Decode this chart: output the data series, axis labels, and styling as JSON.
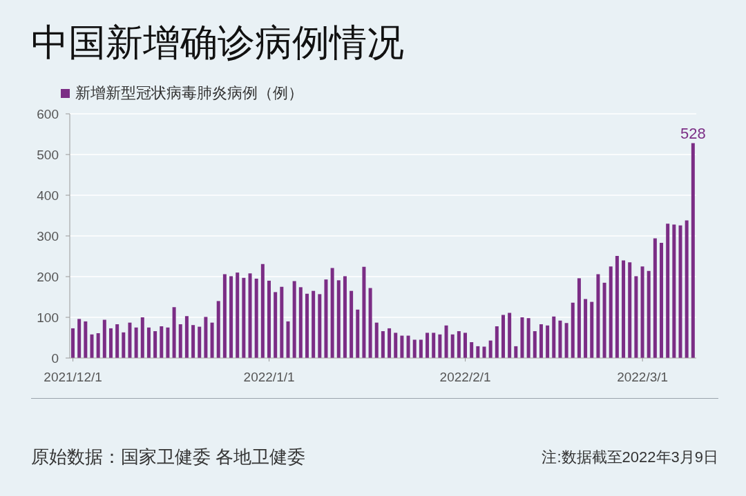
{
  "chart_data": {
    "type": "bar",
    "title": "中国新增确诊病例情况",
    "categories": [
      "2021/12/1",
      null,
      null,
      null,
      null,
      null,
      null,
      null,
      null,
      null,
      null,
      null,
      null,
      null,
      null,
      null,
      null,
      null,
      null,
      null,
      null,
      null,
      null,
      null,
      null,
      null,
      null,
      null,
      null,
      null,
      null,
      "2022/1/1",
      null,
      null,
      null,
      null,
      null,
      null,
      null,
      null,
      null,
      null,
      null,
      null,
      null,
      null,
      null,
      null,
      null,
      null,
      null,
      null,
      null,
      null,
      null,
      null,
      null,
      null,
      null,
      null,
      null,
      null,
      "2022/2/1",
      null,
      null,
      null,
      null,
      null,
      null,
      null,
      null,
      null,
      null,
      null,
      null,
      null,
      null,
      null,
      null,
      null,
      null,
      null,
      null,
      null,
      null,
      null,
      null,
      null,
      null,
      null,
      "2022/3/1",
      null,
      null,
      null,
      null,
      null,
      null,
      null,
      null
    ],
    "series": [
      {
        "name": "新增新型冠状病毒肺炎病例（例）",
        "color": "#7b2d85",
        "values": [
          73,
          96,
          90,
          58,
          61,
          94,
          73,
          83,
          63,
          87,
          75,
          100,
          75,
          66,
          78,
          75,
          125,
          83,
          103,
          81,
          77,
          101,
          87,
          140,
          206,
          201,
          210,
          197,
          208,
          195,
          231,
          190,
          162,
          175,
          90,
          189,
          174,
          158,
          165,
          157,
          193,
          221,
          191,
          201,
          165,
          119,
          224,
          172,
          87,
          66,
          73,
          62,
          55,
          55,
          45,
          45,
          62,
          62,
          58,
          80,
          58,
          66,
          62,
          39,
          29,
          28,
          43,
          78,
          106,
          111,
          29,
          100,
          98,
          66,
          83,
          80,
          102,
          92,
          86,
          136,
          196,
          145,
          138,
          206,
          185,
          225,
          251,
          240,
          235,
          201,
          225,
          214,
          294,
          283,
          330,
          328,
          326,
          338,
          528
        ],
        "value_labels": [
          null,
          null,
          null,
          null,
          null,
          null,
          null,
          null,
          null,
          null,
          null,
          null,
          null,
          null,
          null,
          null,
          null,
          null,
          null,
          null,
          null,
          null,
          null,
          null,
          null,
          null,
          null,
          null,
          null,
          null,
          null,
          null,
          null,
          null,
          null,
          null,
          null,
          null,
          null,
          null,
          null,
          null,
          null,
          null,
          null,
          null,
          null,
          null,
          null,
          null,
          null,
          null,
          null,
          null,
          null,
          null,
          null,
          null,
          null,
          null,
          null,
          null,
          null,
          null,
          null,
          null,
          null,
          null,
          null,
          null,
          null,
          null,
          null,
          null,
          null,
          null,
          null,
          null,
          null,
          null,
          null,
          null,
          null,
          null,
          null,
          null,
          null,
          null,
          null,
          null,
          null,
          null,
          null,
          null,
          null,
          null,
          null,
          null,
          "528"
        ]
      }
    ],
    "ylim": [
      0,
      600
    ],
    "yticks": [
      0,
      100,
      200,
      300,
      400,
      500,
      600
    ],
    "grid": "y",
    "legend": "top left",
    "annotations": [
      "原始数据：国家卫健委 各地卫健委",
      "注:数据截至2022年3月9日"
    ]
  }
}
